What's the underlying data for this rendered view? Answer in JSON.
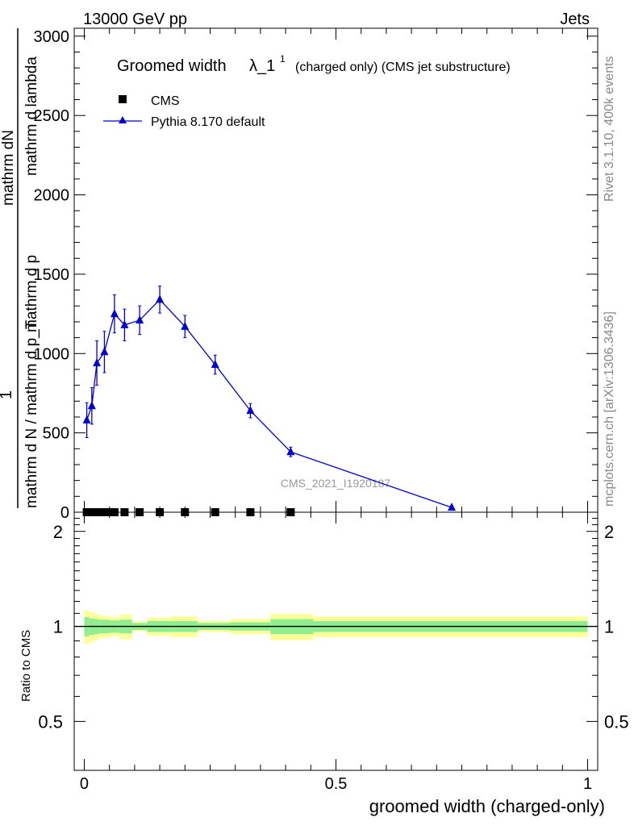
{
  "header": {
    "left": "13000 GeV pp",
    "right": "Jets"
  },
  "side_labels": {
    "rivet": "Rivet 3.1.10,  400k events",
    "mcplots": "mcplots.cern.ch [arXiv:1306.3436]"
  },
  "chart_data": [
    {
      "type": "line",
      "title": "Groomed width",
      "title_symbol": "λ_1",
      "title_superscript": "1",
      "title_suffix": "(charged only) (CMS jet substructure)",
      "analysis_label": "CMS_2021_I1920187",
      "ylabel": {
        "prefix": "1",
        "numerator": "mathrm d N / mathrm d p_T",
        "numerator_sub": "T",
        "denominator": "mathrm d^2N",
        "denominator_sup": "2",
        "denominator_rest": "mathrm d p_T mathrm d lambda"
      },
      "ylabel_lines": [
        "mathrm dN",
        "mathrm d p",
        "mathrm d lambda",
        "mathrm d N / mathrm d p_T"
      ],
      "xlim": [
        -0.02,
        1.02
      ],
      "ylim": [
        0,
        3050
      ],
      "yticks": [
        0,
        500,
        1000,
        1500,
        2000,
        2500,
        3000
      ],
      "legend": {
        "position": "top-left",
        "entries": [
          "CMS",
          "Pythia 8.170 default"
        ]
      },
      "series": [
        {
          "name": "CMS",
          "marker": "square",
          "color": "#000000",
          "x": [
            0.005,
            0.015,
            0.025,
            0.035,
            0.045,
            0.06,
            0.08,
            0.11,
            0.15,
            0.2,
            0.26,
            0.33,
            0.41
          ],
          "values": [
            0,
            0,
            0,
            0,
            0,
            0,
            0,
            0,
            0,
            0,
            0,
            0,
            0
          ]
        },
        {
          "name": "Pythia 8.170 default",
          "marker": "triangle",
          "color": "#0000cc",
          "x": [
            0.005,
            0.015,
            0.025,
            0.04,
            0.06,
            0.08,
            0.11,
            0.15,
            0.2,
            0.26,
            0.33,
            0.41,
            0.73
          ],
          "values": [
            580,
            670,
            940,
            1010,
            1250,
            1180,
            1210,
            1340,
            1170,
            930,
            640,
            380,
            30
          ],
          "errors": [
            110,
            115,
            140,
            130,
            120,
            100,
            90,
            85,
            70,
            60,
            45,
            30,
            10
          ]
        }
      ]
    },
    {
      "type": "area",
      "xlabel": "groomed width (charged-only)",
      "ylabel": "Ratio to CMS",
      "xlim": [
        -0.02,
        1.02
      ],
      "ylim": [
        0.35,
        2.3
      ],
      "yticks": [
        0.5,
        1,
        2
      ],
      "ytick_labels": [
        "0.5",
        "1",
        "2"
      ],
      "xticks": [
        0,
        0.5,
        1
      ],
      "xtick_labels": [
        "0",
        "0.5",
        "1"
      ],
      "reference": 1,
      "bins": [
        {
          "lo": 0.0,
          "hi": 0.01,
          "stat": 0.07,
          "total": 0.12
        },
        {
          "lo": 0.01,
          "hi": 0.02,
          "stat": 0.06,
          "total": 0.11
        },
        {
          "lo": 0.02,
          "hi": 0.03,
          "stat": 0.055,
          "total": 0.095
        },
        {
          "lo": 0.03,
          "hi": 0.05,
          "stat": 0.05,
          "total": 0.08
        },
        {
          "lo": 0.05,
          "hi": 0.07,
          "stat": 0.045,
          "total": 0.07
        },
        {
          "lo": 0.07,
          "hi": 0.095,
          "stat": 0.05,
          "total": 0.09
        },
        {
          "lo": 0.095,
          "hi": 0.125,
          "stat": 0.025,
          "total": 0.035
        },
        {
          "lo": 0.125,
          "hi": 0.17,
          "stat": 0.04,
          "total": 0.065
        },
        {
          "lo": 0.17,
          "hi": 0.225,
          "stat": 0.04,
          "total": 0.075
        },
        {
          "lo": 0.225,
          "hi": 0.29,
          "stat": 0.025,
          "total": 0.04
        },
        {
          "lo": 0.29,
          "hi": 0.37,
          "stat": 0.03,
          "total": 0.055
        },
        {
          "lo": 0.37,
          "hi": 0.455,
          "stat": 0.055,
          "total": 0.095
        },
        {
          "lo": 0.455,
          "hi": 1.0,
          "stat": 0.04,
          "total": 0.075
        }
      ],
      "colors": {
        "stat_band": "#90ee90",
        "total_band": "#ffff99",
        "line": "#000000"
      }
    }
  ]
}
